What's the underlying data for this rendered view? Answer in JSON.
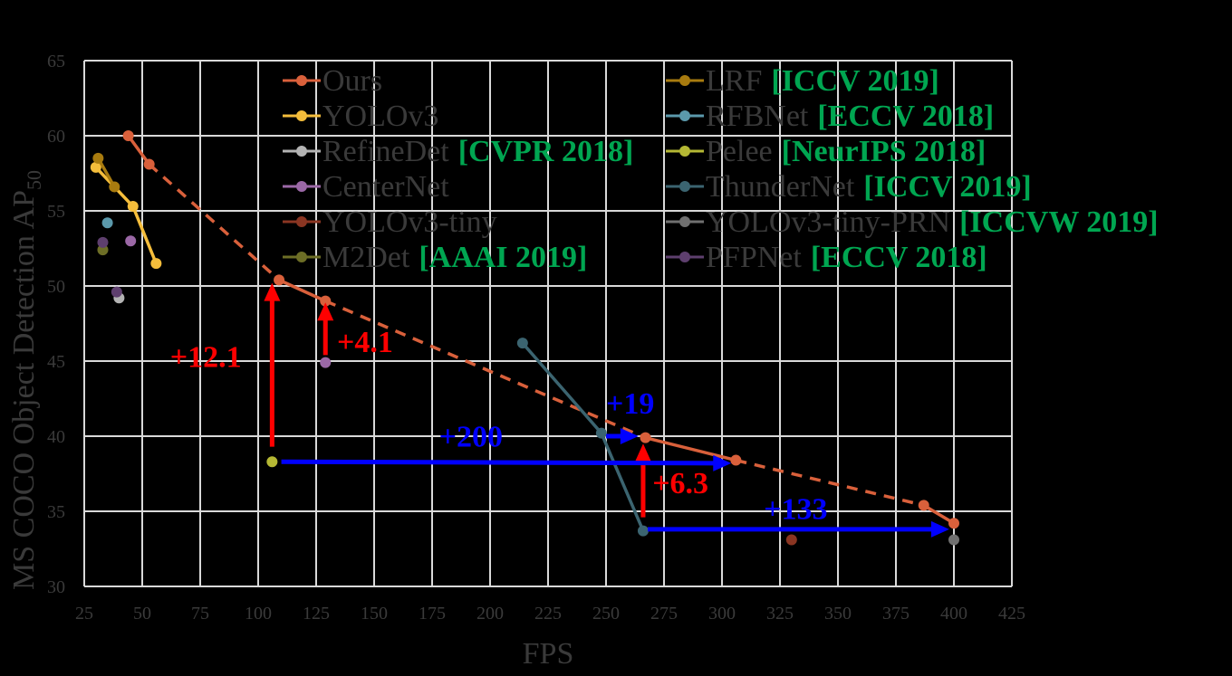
{
  "chart_data": {
    "type": "line",
    "title": "",
    "xlabel": "FPS",
    "ylabel": "MS COCO Object Detection AP",
    "ylabel_subscript": "50",
    "xlim": [
      25,
      425
    ],
    "ylim": [
      30,
      65
    ],
    "xticks": [
      25,
      50,
      75,
      100,
      125,
      150,
      175,
      200,
      225,
      250,
      275,
      300,
      325,
      350,
      375,
      400,
      425
    ],
    "yticks": [
      30,
      35,
      40,
      45,
      50,
      55,
      60,
      65
    ],
    "grid": true,
    "legend_position": "top-center (two columns)",
    "series": [
      {
        "name": "Ours",
        "venue": "",
        "color": "#d9603b",
        "legend_col": 0,
        "points": [
          [
            44,
            60.0
          ],
          [
            53,
            58.1
          ],
          [
            109,
            50.4
          ],
          [
            129,
            49.0
          ],
          [
            267,
            39.9
          ],
          [
            306,
            38.4
          ],
          [
            387,
            35.4
          ],
          [
            400,
            34.2
          ]
        ],
        "dashed_segments": [
          1,
          3,
          5
        ]
      },
      {
        "name": "YOLOv3",
        "venue": "",
        "color": "#f4bd3b",
        "legend_col": 0,
        "points": [
          [
            30,
            57.9
          ],
          [
            46,
            55.3
          ],
          [
            56,
            51.5
          ]
        ]
      },
      {
        "name": "RefineDet",
        "venue": "[CVPR 2018]",
        "color": "#b3b3b3",
        "legend_col": 0,
        "points": [
          [
            40,
            49.2
          ]
        ]
      },
      {
        "name": "CenterNet",
        "venue": "",
        "color": "#9b68a6",
        "legend_col": 0,
        "points": [
          [
            45,
            53.0
          ],
          [
            129,
            44.9
          ]
        ],
        "no_line": true
      },
      {
        "name": "YOLOv3-tiny",
        "venue": "",
        "color": "#8a3522",
        "legend_col": 0,
        "points": [
          [
            330,
            33.1
          ]
        ]
      },
      {
        "name": "M2Det",
        "venue": "[AAAI 2019]",
        "color": "#6d6e26",
        "legend_col": 0,
        "points": [
          [
            33,
            52.4
          ]
        ]
      },
      {
        "name": "LRF",
        "venue": "[ICCV 2019]",
        "color": "#a87b0f",
        "legend_col": 1,
        "points": [
          [
            31,
            58.5
          ],
          [
            38,
            56.6
          ]
        ]
      },
      {
        "name": "RFBNet",
        "venue": "[ECCV 2018]",
        "color": "#5b99ab",
        "legend_col": 1,
        "points": [
          [
            35,
            54.2
          ]
        ]
      },
      {
        "name": "Pelee",
        "venue": "[NeurIPS 2018]",
        "color": "#b5b834",
        "legend_col": 1,
        "points": [
          [
            106,
            38.3
          ]
        ]
      },
      {
        "name": "ThunderNet",
        "venue": "[ICCV 2019]",
        "color": "#3b6470",
        "legend_col": 1,
        "points": [
          [
            214,
            46.2
          ],
          [
            248,
            40.2
          ],
          [
            266,
            33.7
          ]
        ]
      },
      {
        "name": "YOLOv3-tiny-PRN",
        "venue": "[ICCVW 2019]",
        "color": "#707070",
        "legend_col": 1,
        "points": [
          [
            400,
            33.1
          ]
        ]
      },
      {
        "name": "PFPNet",
        "venue": "[ECCV 2018]",
        "color": "#5e3f6e",
        "legend_col": 1,
        "points": [
          [
            33,
            52.9
          ],
          [
            39,
            49.6
          ]
        ],
        "no_line": true
      }
    ],
    "annotations": [
      {
        "text": "+12.1",
        "color": "#ff0000",
        "type": "vertical-arrow",
        "from": [
          106,
          39.3
        ],
        "to": [
          106,
          50.2
        ],
        "label_at": [
          62,
          44.6
        ]
      },
      {
        "text": "+4.1",
        "color": "#ff0000",
        "type": "vertical-arrow",
        "from": [
          129,
          45.4
        ],
        "to": [
          129,
          48.9
        ],
        "label_at": [
          134,
          45.6
        ]
      },
      {
        "text": "+6.3",
        "color": "#ff0000",
        "type": "vertical-arrow",
        "from": [
          266,
          34.6
        ],
        "to": [
          266,
          39.5
        ],
        "label_at": [
          270,
          36.2
        ]
      },
      {
        "text": "+200",
        "color": "#0000ff",
        "type": "horizontal-arrow",
        "from": [
          110,
          38.3
        ],
        "to": [
          304,
          38.2
        ],
        "label_at": [
          178,
          39.3
        ]
      },
      {
        "text": "+19",
        "color": "#0000ff",
        "type": "horizontal-arrow",
        "from": [
          250,
          40.0
        ],
        "to": [
          264,
          40.0
        ],
        "label_at": [
          250,
          41.5
        ]
      },
      {
        "text": "+133",
        "color": "#0000ff",
        "type": "horizontal-arrow",
        "from": [
          268,
          33.8
        ],
        "to": [
          398,
          33.8
        ],
        "label_at": [
          318,
          34.5
        ]
      }
    ]
  },
  "style": {
    "background": "#000000",
    "grid_color": "#d9d9d9",
    "text_color": "#3a3a3a",
    "venue_color": "#00a651"
  }
}
